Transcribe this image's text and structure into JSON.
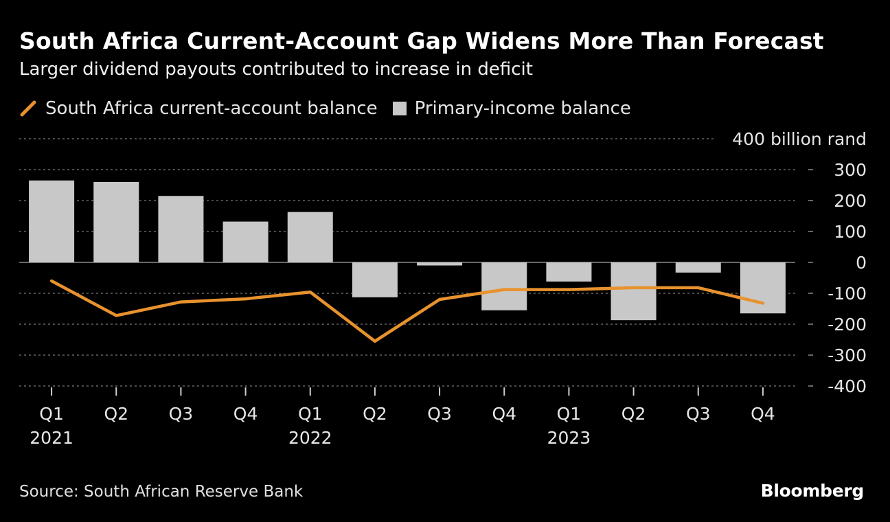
{
  "chart_data": {
    "type": "bar",
    "title": "South Africa Current-Account Gap Widens More Than Forecast",
    "subtitle": "Larger dividend payouts contributed to increase in deficit",
    "categories": [
      "Q1",
      "Q2",
      "Q3",
      "Q4",
      "Q1",
      "Q2",
      "Q3",
      "Q4",
      "Q1",
      "Q2",
      "Q3",
      "Q4"
    ],
    "year_labels": [
      "2021",
      "",
      "",
      "",
      "2022",
      "",
      "",
      "",
      "2023",
      "",
      "",
      ""
    ],
    "series": [
      {
        "name": "South Africa current-account balance",
        "kind": "line",
        "color": "#e8922e",
        "values": [
          -60,
          -172,
          -128,
          -118,
          -96,
          -255,
          -120,
          -88,
          -88,
          -82,
          -82,
          -132
        ]
      },
      {
        "name": "Primary-income balance",
        "kind": "bar",
        "color": "#c8c8c8",
        "values": [
          265,
          260,
          215,
          132,
          163,
          -113,
          -10,
          -155,
          -62,
          -187,
          -33,
          -165
        ]
      }
    ],
    "y_ticks": [
      400,
      300,
      200,
      100,
      0,
      -100,
      -200,
      -300,
      -400
    ],
    "y_tick_labels": [
      "400 billion rand",
      "300",
      "200",
      "100",
      "0",
      "-100",
      "-200",
      "-300",
      "-400"
    ],
    "ylim": [
      -400,
      400
    ],
    "grid": true,
    "legend_position": "top-left"
  },
  "source": "Source: South African Reserve Bank",
  "brand": "Bloomberg"
}
